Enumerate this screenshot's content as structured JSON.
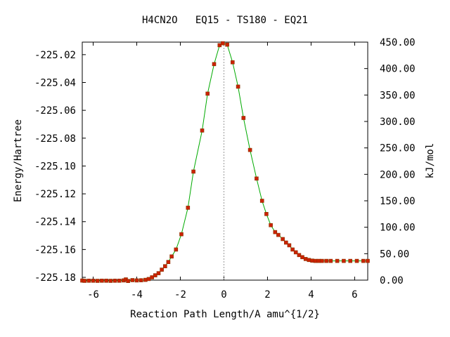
{
  "chart_data": {
    "type": "line",
    "title": "H4CN2O   EQ15 - TS180 - EQ21",
    "xlabel": "Reaction Path Length/A amu^{1/2}",
    "ylabel": "Energy/Hartree",
    "y2label": "kJ/mol",
    "xlim": [
      -6.5,
      6.6
    ],
    "ylim": [
      -225.182,
      -225.011
    ],
    "y2lim": [
      0.0,
      450.0
    ],
    "x_ticks": [
      -6,
      -4,
      -2,
      0,
      2,
      4,
      6
    ],
    "x_tick_labels": [
      "-6",
      "-4",
      "-2",
      "0",
      "2",
      "4",
      "6"
    ],
    "y_ticks": [
      -225.18,
      -225.16,
      -225.14,
      -225.12,
      -225.1,
      -225.08,
      -225.06,
      -225.04,
      -225.02
    ],
    "y_tick_labels": [
      "-225.18",
      "-225.16",
      "-225.14",
      "-225.12",
      "-225.10",
      "-225.08",
      "-225.06",
      "-225.04",
      "-225.02"
    ],
    "y2_ticks": [
      0,
      50,
      100,
      150,
      200,
      250,
      300,
      350,
      400,
      450
    ],
    "y2_tick_labels": [
      "0.00",
      "50.00",
      "100.00",
      "150.00",
      "200.00",
      "250.00",
      "300.00",
      "350.00",
      "400.00",
      "450.00"
    ],
    "ts_marker_x": 0.0,
    "grid": false,
    "colors": {
      "line": "#00aa00",
      "marker": "#cc2200",
      "marker_edge": "#883300",
      "ts_line": "#999999"
    },
    "series": [
      {
        "x": [
          -6.5,
          -6.4,
          -6.2,
          -6.0,
          -5.8,
          -5.6,
          -5.4,
          -5.2,
          -5.0,
          -4.8,
          -4.6,
          -4.5,
          -4.4,
          -4.2,
          -4.0,
          -3.8,
          -3.6,
          -3.45,
          -3.3,
          -3.15,
          -3.0,
          -2.85,
          -2.7,
          -2.55,
          -2.4,
          -2.2,
          -1.95,
          -1.65,
          -1.4,
          -1.0,
          -0.75,
          -0.45,
          -0.2,
          -0.05,
          0.15,
          0.4,
          0.65,
          0.9,
          1.2,
          1.5,
          1.75,
          1.95,
          2.15,
          2.35,
          2.5,
          2.7,
          2.85,
          3.0,
          3.15,
          3.3,
          3.45,
          3.6,
          3.75,
          3.9,
          4.05,
          4.2,
          4.35,
          4.5,
          4.7,
          4.9,
          5.2,
          5.5,
          5.8,
          6.1,
          6.4,
          6.6
        ],
        "y": [
          -225.1823,
          -225.1825,
          -225.1824,
          -225.1824,
          -225.1825,
          -225.1824,
          -225.1824,
          -225.1825,
          -225.1824,
          -225.1824,
          -225.1822,
          -225.1815,
          -225.1826,
          -225.182,
          -225.1822,
          -225.1821,
          -225.1818,
          -225.1812,
          -225.18,
          -225.1785,
          -225.177,
          -225.1745,
          -225.172,
          -225.169,
          -225.165,
          -225.16,
          -225.149,
          -225.13,
          -225.104,
          -225.0745,
          -225.048,
          -225.0268,
          -225.0132,
          -225.0118,
          -225.0128,
          -225.0255,
          -225.043,
          -225.0655,
          -225.0885,
          -225.109,
          -225.125,
          -225.1345,
          -225.1425,
          -225.1475,
          -225.1495,
          -225.1525,
          -225.155,
          -225.157,
          -225.16,
          -225.162,
          -225.164,
          -225.1655,
          -225.1668,
          -225.1675,
          -225.168,
          -225.1682,
          -225.1682,
          -225.1682,
          -225.1682,
          -225.1682,
          -225.1682,
          -225.1682,
          -225.1682,
          -225.1682,
          -225.1682,
          -225.1682
        ]
      }
    ]
  }
}
